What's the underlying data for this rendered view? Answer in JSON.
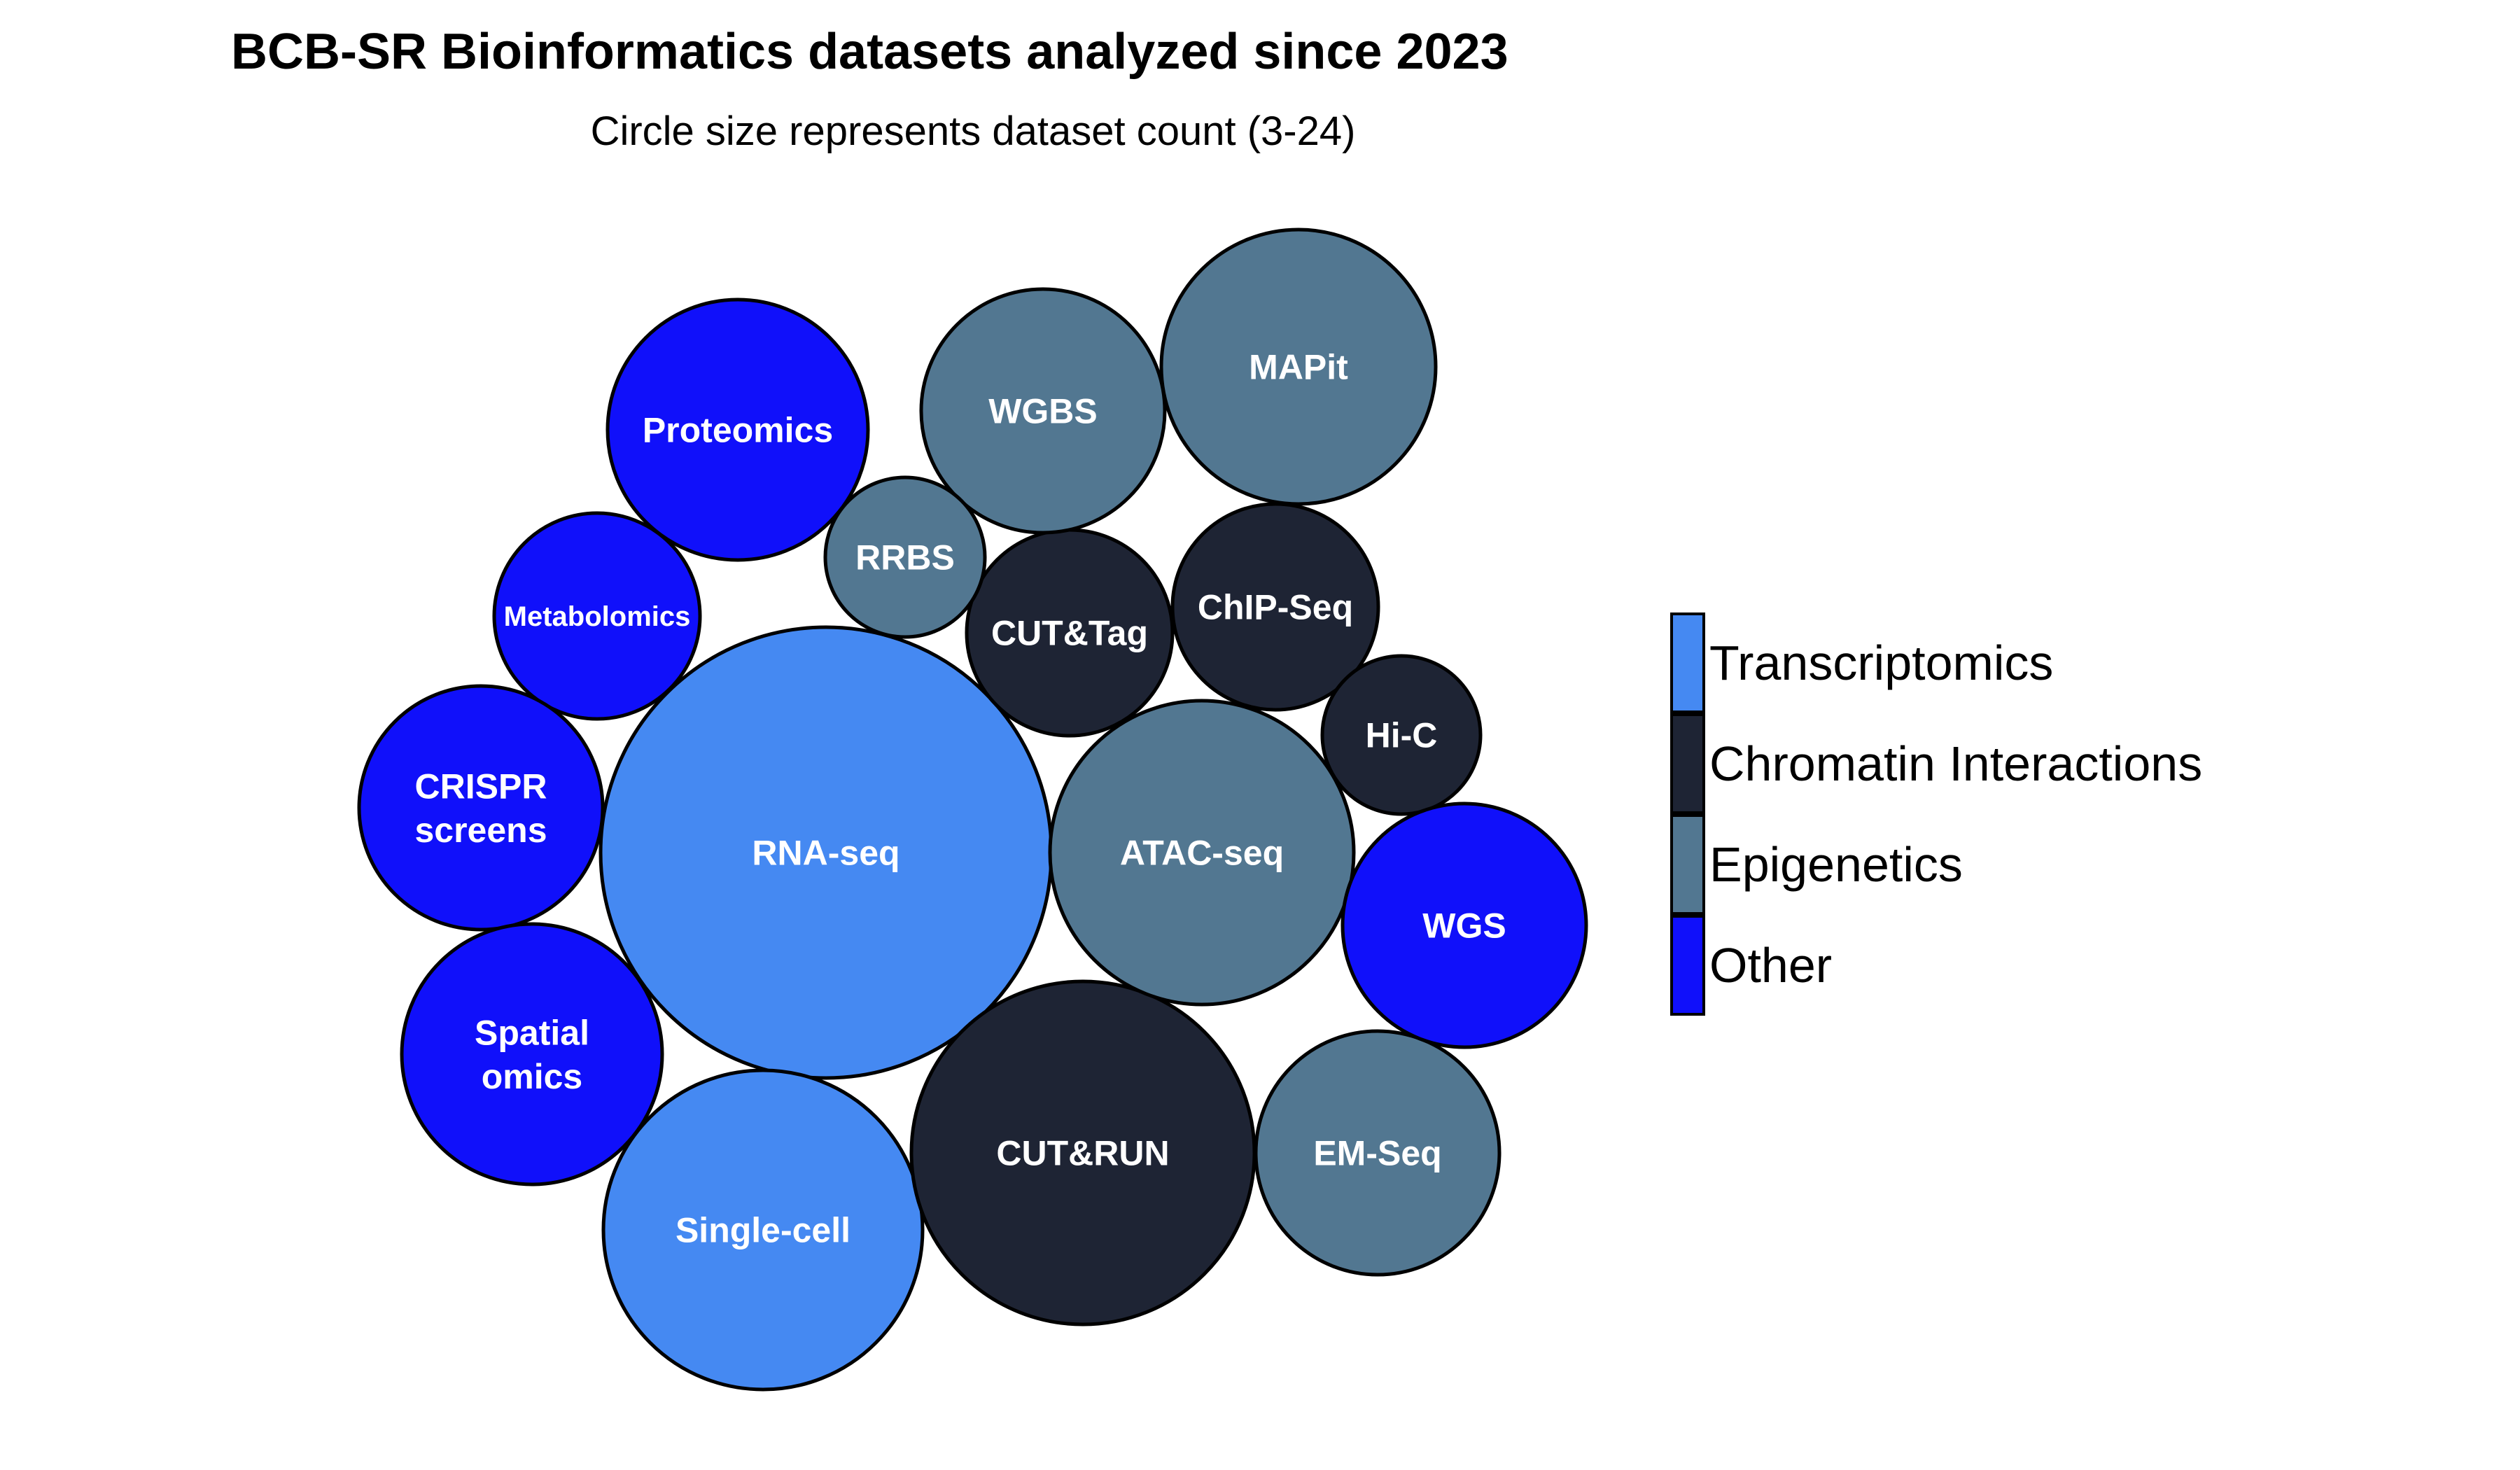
{
  "chart_data": {
    "type": "bubble",
    "title": "BCB-SR Bioinformatics datasets analyzed since 2023",
    "subtitle": "Circle size represents dataset count (3-24)",
    "size_range": [
      3,
      24
    ],
    "legend_placement": "right",
    "categories": [
      {
        "name": "Transcriptomics",
        "color": "#4589f2"
      },
      {
        "name": "Chromatin Interactions",
        "color": "#1e2434"
      },
      {
        "name": "Epigenetics",
        "color": "#527791"
      },
      {
        "name": "Other",
        "color": "#1010fa"
      }
    ],
    "bubbles": [
      {
        "label": "RNA-seq",
        "category": "Transcriptomics",
        "value": 24
      },
      {
        "label": "Single-cell",
        "category": "Transcriptomics",
        "value": 12
      },
      {
        "label": "CUT&RUN",
        "category": "Chromatin Interactions",
        "value": 14
      },
      {
        "label": "CUT&Tag",
        "category": "Chromatin Interactions",
        "value": 5.5
      },
      {
        "label": "ChIP-Seq",
        "category": "Chromatin Interactions",
        "value": 5.5
      },
      {
        "label": "Hi-C",
        "category": "Chromatin Interactions",
        "value": 3
      },
      {
        "label": "ATAC-seq",
        "category": "Epigenetics",
        "value": 11
      },
      {
        "label": "MAPit",
        "category": "Epigenetics",
        "value": 9
      },
      {
        "label": "WGBS",
        "category": "Epigenetics",
        "value": 7
      },
      {
        "label": "EM-Seq",
        "category": "Epigenetics",
        "value": 7
      },
      {
        "label": "RRBS",
        "category": "Epigenetics",
        "value": 3
      },
      {
        "label": "Proteomics",
        "category": "Other",
        "value": 8
      },
      {
        "label": "Metabolomics",
        "category": "Other",
        "value": 5.5
      },
      {
        "label": "CRISPR screens",
        "category": "Other",
        "value": 7
      },
      {
        "label": "Spatial omics",
        "category": "Other",
        "value": 8
      },
      {
        "label": "WGS",
        "category": "Other",
        "value": 7
      }
    ]
  }
}
